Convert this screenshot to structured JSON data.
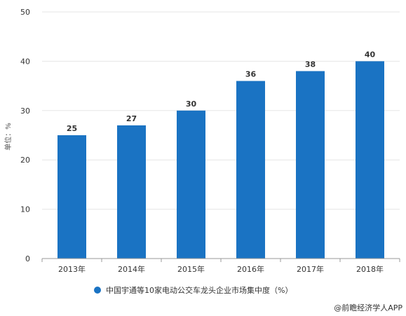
{
  "chart_data": {
    "type": "bar",
    "categories": [
      "2013年",
      "2014年",
      "2015年",
      "2016年",
      "2017年",
      "2018年"
    ],
    "series": [
      {
        "name": "中国宇通等10家电动公交车龙头企业市场集中度（%）",
        "values": [
          25,
          27,
          30,
          36,
          38,
          40
        ],
        "color": "#1a73c3"
      }
    ],
    "ylabel": "单位：%",
    "ylim": [
      0,
      50
    ],
    "yticks": [
      0,
      10,
      20,
      30,
      40,
      50
    ],
    "grid": true,
    "legend": "bottom-center"
  },
  "credit": "@前瞻经济学人APP"
}
